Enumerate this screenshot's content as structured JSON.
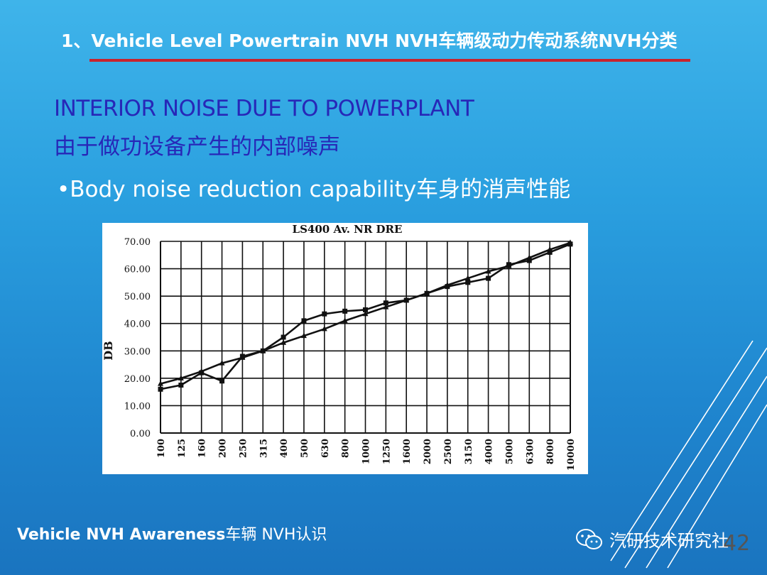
{
  "header": {
    "title": "1、Vehicle Level Powertrain NVH  NVH车辆级动力传动系统NVH分类"
  },
  "section": {
    "title_en": "INTERIOR NOISE DUE TO POWERPLANT",
    "title_zh": "由于做功设备产生的内部噪声"
  },
  "bullet": {
    "text": "•Body noise reduction capability车身的消声性能"
  },
  "chart_data": {
    "type": "line",
    "title": "LS400 Av. NR DRE",
    "xlabel": "",
    "ylabel": "DB",
    "ylim": [
      0,
      70
    ],
    "yticks": [
      "0.00",
      "10.00",
      "20.00",
      "30.00",
      "40.00",
      "50.00",
      "60.00",
      "70.00"
    ],
    "categories": [
      "100",
      "125",
      "160",
      "200",
      "250",
      "315",
      "400",
      "500",
      "630",
      "800",
      "1000",
      "1250",
      "1600",
      "2000",
      "2500",
      "3150",
      "4000",
      "5000",
      "6300",
      "8000",
      "10000"
    ],
    "series": [
      {
        "marker": "square",
        "values": [
          16,
          17.5,
          22,
          19,
          28,
          30,
          35,
          41,
          43.5,
          44.5,
          45,
          47.5,
          48.5,
          51,
          53.5,
          55,
          56.5,
          61.5,
          63,
          66,
          69
        ]
      },
      {
        "marker": "triangle",
        "values": [
          18,
          20,
          22.5,
          25.5,
          27.5,
          30,
          33,
          35.5,
          38,
          41,
          43.5,
          46,
          48.5,
          51,
          54,
          56.5,
          59,
          61,
          64,
          67,
          69.5
        ]
      }
    ],
    "grid": true,
    "legend": "none"
  },
  "footer": {
    "text_en": "Vehicle NVH Awareness",
    "text_zh": "车辆 NVH认识",
    "brand": "汽研技术研究社",
    "page": "42"
  },
  "icons": {
    "brand_icon": "wechat-icon"
  },
  "colors": {
    "accent_red": "#c9232d",
    "heading_blue": "#2727b8"
  }
}
